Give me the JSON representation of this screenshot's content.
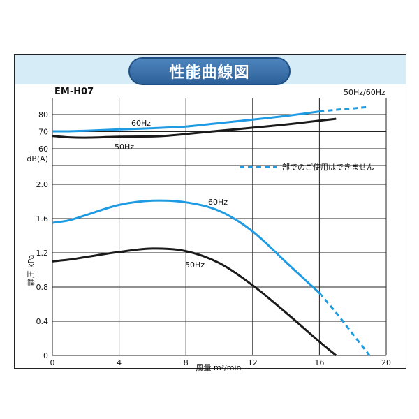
{
  "header": {
    "title": "性能曲線図",
    "model": "EM-H07",
    "frequency": "50Hz/60Hz"
  },
  "colors": {
    "hz60": "#1e9be3",
    "hz50": "#1a1a1a",
    "band": "#d6ecf7",
    "badge": "#2d6aa8"
  },
  "chart_data": [
    {
      "type": "line",
      "panel": "noise",
      "ylabel": "dB(A)",
      "x_ticks": [
        0,
        4,
        8,
        12,
        16,
        20
      ],
      "y_ticks": [
        60,
        70,
        80
      ],
      "ylim": [
        58,
        86
      ],
      "xlim": [
        0,
        20
      ],
      "grid": true,
      "series": [
        {
          "name": "60Hz",
          "color": "#1e9be3",
          "x": [
            0,
            1,
            2,
            4,
            6,
            8,
            10,
            12,
            14,
            16
          ],
          "y": [
            70.2,
            70.2,
            70.5,
            71.3,
            72.0,
            73.0,
            75.0,
            77.0,
            79.2,
            81.8
          ]
        },
        {
          "name": "60Hz-unusable",
          "color": "#1e9be3",
          "dashed": true,
          "x": [
            16,
            17,
            18,
            19
          ],
          "y": [
            81.8,
            82.8,
            83.6,
            84.5
          ]
        },
        {
          "name": "50Hz",
          "color": "#1a1a1a",
          "x": [
            0,
            1,
            2,
            4,
            6,
            7,
            8,
            10,
            12,
            14,
            16,
            17
          ],
          "y": [
            67.5,
            66.7,
            66.5,
            67.0,
            67.2,
            67.7,
            68.6,
            70.5,
            72.3,
            74.2,
            76.4,
            77.5
          ]
        }
      ],
      "annotations": [
        "60Hz",
        "50Hz"
      ]
    },
    {
      "type": "line",
      "panel": "pressure",
      "ylabel": "静圧 kPa",
      "xlabel": "風量 m³/min",
      "x_ticks": [
        0,
        4,
        8,
        12,
        16,
        20
      ],
      "y_ticks": [
        "0",
        "0.4",
        "0.8",
        "1.2",
        "1.6",
        "2.0"
      ],
      "ylim": [
        0,
        2.0
      ],
      "xlim": [
        0,
        20
      ],
      "grid": true,
      "series": [
        {
          "name": "60Hz",
          "color": "#1e9be3",
          "x": [
            0,
            1,
            2,
            4,
            6,
            8,
            10,
            12,
            14,
            16
          ],
          "y": [
            1.55,
            1.58,
            1.64,
            1.76,
            1.81,
            1.79,
            1.69,
            1.45,
            1.09,
            0.73
          ]
        },
        {
          "name": "60Hz-unusable",
          "color": "#1e9be3",
          "dashed": true,
          "x": [
            16,
            17,
            18,
            19
          ],
          "y": [
            0.73,
            0.5,
            0.25,
            0.0
          ]
        },
        {
          "name": "50Hz",
          "color": "#1a1a1a",
          "x": [
            0,
            1,
            2,
            4,
            6,
            8,
            10,
            12,
            14,
            16,
            17
          ],
          "y": [
            1.1,
            1.12,
            1.15,
            1.21,
            1.25,
            1.22,
            1.08,
            0.82,
            0.5,
            0.16,
            0.0
          ]
        }
      ],
      "annotations": [
        "60Hz",
        "50Hz"
      ]
    }
  ],
  "legend": {
    "unusable_label": "部でのご使用はできません"
  },
  "labels": {
    "hz60": "60Hz",
    "hz50": "50Hz"
  }
}
